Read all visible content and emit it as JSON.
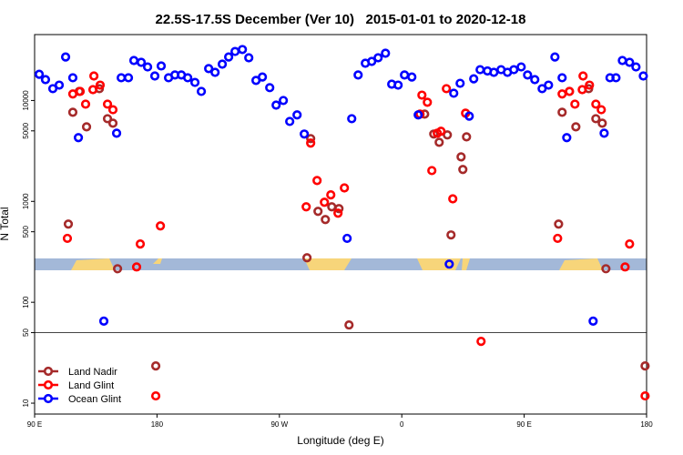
{
  "chart_data": {
    "type": "scatter",
    "title": "22.5S-17.5S December (Ver 10)   2015-01-01 to 2020-12-18",
    "xlabel": "Longitude (deg E)",
    "ylabel": "N Total",
    "log_y": true,
    "legend": "lower left",
    "hline": 50,
    "xlim": [
      90,
      540
    ],
    "xticks": [
      {
        "value": 90,
        "label": "90 E"
      },
      180,
      {
        "value": 270,
        "label": "90 W"
      },
      {
        "value": 360,
        "label": "0"
      },
      {
        "value": 450,
        "label": "90 E"
      },
      {
        "value": 540,
        "label": "180"
      }
    ],
    "ylim": [
      7.8,
      45000
    ],
    "yticks": [
      10,
      50,
      100,
      500,
      1000,
      5000,
      10000
    ],
    "series": [
      {
        "name": "Land Nadir",
        "color": "#a52a2a",
        "x": [
          114.8,
          118.1,
          122.8,
          128.2,
          137.6,
          143.6,
          147.6,
          151,
          179.1,
          290.3,
          293,
          298.4,
          303.8,
          308.5,
          313.8,
          321.2,
          376.8,
          383.5,
          387.5,
          393.5,
          396.2,
          403.6,
          404.9,
          407.6,
          475.3,
          477.9,
          483.3,
          488,
          497.4,
          502.7,
          507.4,
          510.1,
          538.9
        ],
        "values": [
          596,
          7640,
          12300,
          5480,
          13100,
          6600,
          5960,
          215,
          23.4,
          276,
          4190,
          796,
          661,
          884,
          848,
          59.6,
          7330,
          4650,
          3850,
          4560,
          465,
          2760,
          2070,
          4360,
          596,
          7640,
          12300,
          5480,
          13100,
          6600,
          5960,
          215,
          23.4
        ]
      },
      {
        "name": "Land Glint",
        "color": "#ff0000",
        "x": [
          114.1,
          118.1,
          123.5,
          127.5,
          132.9,
          133.6,
          138.2,
          143.6,
          147.6,
          165,
          167.7,
          182.5,
          179.1,
          289.7,
          293,
          297.7,
          303.1,
          307.8,
          313.1,
          317.8,
          373.4,
          374.8,
          378.8,
          382.1,
          386.1,
          388.8,
          392.8,
          397.5,
          406.9,
          418.3,
          474.6,
          477.9,
          483.3,
          487.3,
          492.7,
          493.3,
          498,
          502.7,
          506.7,
          524.2,
          527.5,
          538.9
        ],
        "values": [
          430,
          11600,
          12300,
          9200,
          12800,
          17500,
          14200,
          9200,
          8100,
          224,
          378,
          571,
          11.8,
          884,
          3780,
          1610,
          980,
          1160,
          764,
          1360,
          7330,
          11300,
          9600,
          2020,
          4740,
          4950,
          13100,
          1060,
          7480,
          41,
          430,
          11600,
          12300,
          9200,
          12800,
          17500,
          14200,
          9200,
          8100,
          224,
          378,
          11.8
        ]
      },
      {
        "name": "Ocean Glint",
        "color": "#0000ff",
        "x": [
          93.4,
          98,
          103.4,
          108.1,
          112.8,
          118.1,
          122.2,
          140.9,
          150.3,
          153.7,
          159,
          163,
          168.4,
          173.1,
          178.4,
          183.1,
          188.5,
          193.2,
          197.9,
          202.6,
          207.9,
          212.6,
          218,
          222.7,
          228,
          232.7,
          237.4,
          242.8,
          247.5,
          252.8,
          257.5,
          262.9,
          267.6,
          272.9,
          277.6,
          283,
          288.3,
          319.8,
          323.2,
          327.9,
          333.2,
          337.9,
          342.6,
          348,
          352.6,
          357.3,
          362,
          367.4,
          372.1,
          394.9,
          398.2,
          402.9,
          409.6,
          412.9,
          417.6,
          423,
          427.7,
          433,
          437.7,
          442.4,
          447.8,
          452.5,
          457.8,
          463.2,
          467.9,
          472.6,
          477.9,
          481.3,
          500.7,
          508.8,
          513.1,
          517.5,
          522.2,
          527.5,
          532.2,
          537.6
        ],
        "values": [
          18200,
          16100,
          13100,
          14200,
          27000,
          16800,
          4280,
          65,
          4740,
          16800,
          16800,
          24900,
          23900,
          21500,
          17500,
          22000,
          16800,
          17900,
          17900,
          16800,
          15100,
          12300,
          20700,
          19000,
          22900,
          27000,
          30600,
          32000,
          26500,
          15800,
          17100,
          13400,
          9000,
          10000,
          6200,
          7200,
          4650,
          430,
          6600,
          17900,
          23400,
          24400,
          26500,
          29400,
          14500,
          14200,
          17900,
          17100,
          7200,
          239,
          11800,
          14800,
          7000,
          16400,
          20200,
          19600,
          19000,
          20200,
          19000,
          20200,
          21500,
          17900,
          16100,
          13100,
          14200,
          27000,
          16800,
          4280,
          65,
          4740,
          16800,
          16800,
          24900,
          23900,
          21500,
          17500
        ]
      }
    ]
  }
}
